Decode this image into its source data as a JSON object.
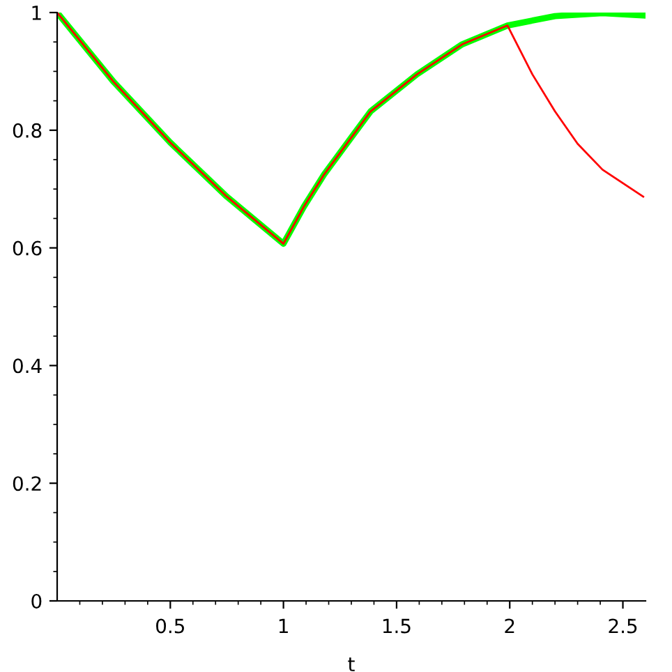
{
  "chart_data": {
    "type": "line",
    "xlabel": "t",
    "x": [
      0,
      0.25,
      0.5,
      0.75,
      1,
      1.09,
      1.18,
      1.385,
      1.59,
      1.79,
      1.99,
      2.2,
      2.41,
      2.59
    ],
    "series": [
      {
        "color": "#00ff00",
        "values": [
          1,
          0.882,
          0.779,
          0.687,
          0.607,
          0.67,
          0.725,
          0.832,
          0.895,
          0.946,
          0.978,
          0.994,
          0.999,
          0.995
        ]
      },
      {
        "color": "#ff0000",
        "x": [
          0,
          0.25,
          0.5,
          0.75,
          1,
          1.09,
          1.18,
          1.385,
          1.59,
          1.79,
          1.99,
          2.1,
          2.2,
          2.3,
          2.41,
          2.59
        ],
        "values": [
          1,
          0.882,
          0.779,
          0.687,
          0.607,
          0.67,
          0.725,
          0.832,
          0.895,
          0.946,
          0.978,
          0.895,
          0.832,
          0.777,
          0.733,
          0.687
        ]
      }
    ],
    "xlim": [
      0,
      2.6
    ],
    "ylim": [
      0,
      1
    ],
    "xticks": [
      0.5,
      1,
      1.5,
      2,
      2.5,
      {
        "value": 0.1,
        "label": null
      },
      {
        "value": 0.2,
        "label": null
      },
      {
        "value": 0.3,
        "label": null
      },
      {
        "value": 0.4,
        "label": null
      },
      {
        "value": 0.6,
        "label": null
      },
      {
        "value": 0.7,
        "label": null
      },
      {
        "value": 0.8,
        "label": null
      },
      {
        "value": 0.9,
        "label": null
      },
      {
        "value": 1.1,
        "label": null
      },
      {
        "value": 1.2,
        "label": null
      },
      {
        "value": 1.3,
        "label": null
      },
      {
        "value": 1.4,
        "label": null
      },
      {
        "value": 1.6,
        "label": null
      },
      {
        "value": 1.7,
        "label": null
      },
      {
        "value": 1.8,
        "label": null
      },
      {
        "value": 1.9,
        "label": null
      },
      {
        "value": 2.1,
        "label": null
      },
      {
        "value": 2.2,
        "label": null
      },
      {
        "value": 2.3,
        "label": null
      },
      {
        "value": 2.4,
        "label": null
      }
    ],
    "yticks": [
      0,
      0.2,
      0.4,
      0.6,
      0.8,
      1,
      {
        "value": 0.05,
        "label": null
      },
      {
        "value": 0.1,
        "label": null
      },
      {
        "value": 0.15,
        "label": null
      },
      {
        "value": 0.25,
        "label": null
      },
      {
        "value": 0.3,
        "label": null
      },
      {
        "value": 0.35,
        "label": null
      },
      {
        "value": 0.45,
        "label": null
      },
      {
        "value": 0.5,
        "label": null
      },
      {
        "value": 0.55,
        "label": null
      },
      {
        "value": 0.65,
        "label": null
      },
      {
        "value": 0.7,
        "label": null
      },
      {
        "value": 0.75,
        "label": null
      },
      {
        "value": 0.85,
        "label": null
      },
      {
        "value": 0.9,
        "label": null
      },
      {
        "value": 0.95,
        "label": null
      }
    ],
    "grid": false,
    "legend": false,
    "marker": "none",
    "line_style": "solid"
  }
}
